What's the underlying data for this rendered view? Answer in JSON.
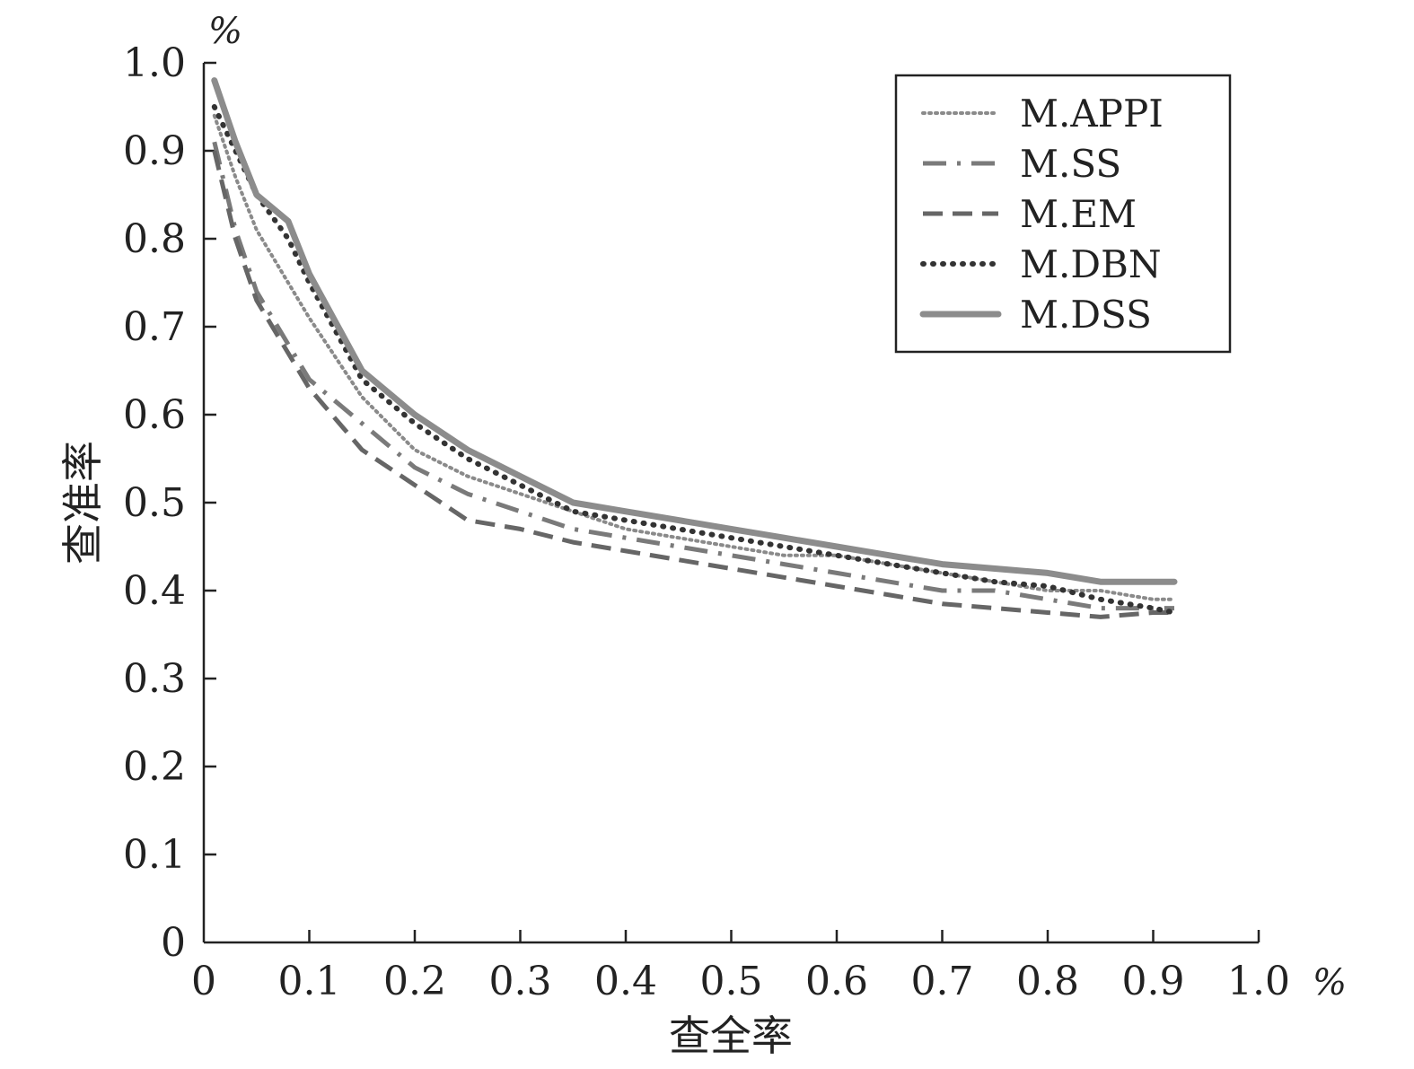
{
  "chart_data": {
    "type": "line",
    "title": "",
    "xlabel": "查全率",
    "ylabel": "查准率",
    "x_unit": "%",
    "y_unit": "%",
    "xlim": [
      0,
      1.0
    ],
    "ylim": [
      0,
      1.0
    ],
    "x_ticks": [
      "0",
      "0.1",
      "0.2",
      "0.3",
      "0.4",
      "0.5",
      "0.6",
      "0.7",
      "0.8",
      "0.9",
      "1.0"
    ],
    "y_ticks": [
      "0",
      "0.1",
      "0.2",
      "0.3",
      "0.4",
      "0.5",
      "0.6",
      "0.7",
      "0.8",
      "0.9",
      "1.0"
    ],
    "grid": false,
    "legend_position": "top-right",
    "x": [
      0.01,
      0.03,
      0.05,
      0.08,
      0.1,
      0.15,
      0.2,
      0.25,
      0.3,
      0.35,
      0.4,
      0.45,
      0.5,
      0.55,
      0.6,
      0.65,
      0.7,
      0.75,
      0.8,
      0.85,
      0.9,
      0.92
    ],
    "series": [
      {
        "name": "M.APPI",
        "style": "dotted-light",
        "color": "#8a8a8a",
        "values": [
          0.94,
          0.87,
          0.81,
          0.75,
          0.71,
          0.62,
          0.56,
          0.53,
          0.51,
          0.49,
          0.47,
          0.46,
          0.45,
          0.44,
          0.44,
          0.43,
          0.42,
          0.41,
          0.4,
          0.4,
          0.39,
          0.39
        ]
      },
      {
        "name": "M.SS",
        "style": "dash-dot",
        "color": "#7a7a7a",
        "values": [
          0.91,
          0.81,
          0.74,
          0.68,
          0.64,
          0.59,
          0.54,
          0.51,
          0.49,
          0.47,
          0.46,
          0.45,
          0.44,
          0.43,
          0.42,
          0.41,
          0.4,
          0.4,
          0.39,
          0.38,
          0.38,
          0.38
        ]
      },
      {
        "name": "M.EM",
        "style": "dashed",
        "color": "#666666",
        "values": [
          0.9,
          0.8,
          0.73,
          0.67,
          0.63,
          0.56,
          0.52,
          0.48,
          0.47,
          0.455,
          0.445,
          0.435,
          0.425,
          0.415,
          0.405,
          0.395,
          0.385,
          0.38,
          0.375,
          0.37,
          0.375,
          0.375
        ]
      },
      {
        "name": "M.DBN",
        "style": "dotted-dark",
        "color": "#333333",
        "values": [
          0.95,
          0.9,
          0.85,
          0.8,
          0.75,
          0.64,
          0.59,
          0.55,
          0.52,
          0.49,
          0.48,
          0.47,
          0.46,
          0.45,
          0.44,
          0.43,
          0.42,
          0.41,
          0.405,
          0.39,
          0.38,
          0.375
        ]
      },
      {
        "name": "M.DSS",
        "style": "solid",
        "color": "#8c8c8c",
        "values": [
          0.98,
          0.91,
          0.85,
          0.82,
          0.76,
          0.65,
          0.6,
          0.56,
          0.53,
          0.5,
          0.49,
          0.48,
          0.47,
          0.46,
          0.45,
          0.44,
          0.43,
          0.425,
          0.42,
          0.41,
          0.41,
          0.41
        ]
      }
    ]
  }
}
